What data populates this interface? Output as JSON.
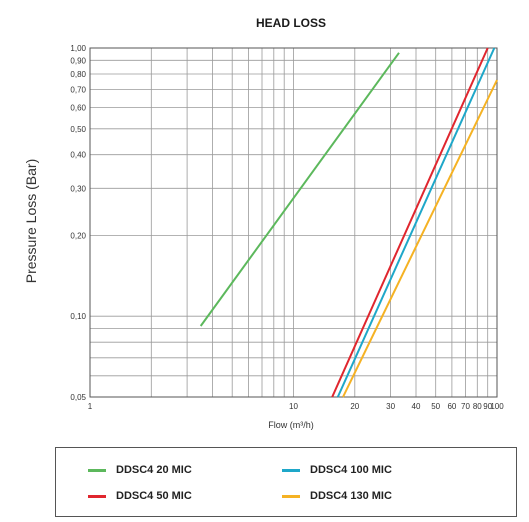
{
  "chart_data": {
    "type": "line",
    "title": "HEAD LOSS",
    "xlabel": "Flow (m³/h)",
    "ylabel": "Pressure Loss (Bar)",
    "x_scale": "log",
    "y_scale": "log",
    "xlim": [
      1,
      100
    ],
    "ylim": [
      0.05,
      1.0
    ],
    "grid": true,
    "legend_position": "bottom",
    "x_ticks": [
      {
        "value": 1,
        "label": "1"
      },
      {
        "value": 10,
        "label": "10"
      },
      {
        "value": 20,
        "label": "20"
      },
      {
        "value": 30,
        "label": "30"
      },
      {
        "value": 40,
        "label": "40"
      },
      {
        "value": 50,
        "label": "50"
      },
      {
        "value": 60,
        "label": "60"
      },
      {
        "value": 70,
        "label": "70"
      },
      {
        "value": 80,
        "label": "80"
      },
      {
        "value": 90,
        "label": "90"
      },
      {
        "value": 100,
        "label": "100"
      }
    ],
    "x_gridlines": [
      1,
      2,
      3,
      4,
      5,
      6,
      7,
      8,
      9,
      10,
      20,
      30,
      40,
      50,
      60,
      70,
      80,
      90,
      100
    ],
    "y_ticks": [
      {
        "value": 0.05,
        "label": "0,05"
      },
      {
        "value": 0.1,
        "label": "0,10"
      },
      {
        "value": 0.2,
        "label": "0,20"
      },
      {
        "value": 0.3,
        "label": "0,30"
      },
      {
        "value": 0.4,
        "label": "0,40"
      },
      {
        "value": 0.5,
        "label": "0,50"
      },
      {
        "value": 0.6,
        "label": "0,60"
      },
      {
        "value": 0.7,
        "label": "0,70"
      },
      {
        "value": 0.8,
        "label": "0,80"
      },
      {
        "value": 0.9,
        "label": "0,90"
      },
      {
        "value": 1.0,
        "label": "1,00"
      }
    ],
    "y_gridlines": [
      0.05,
      0.06,
      0.07,
      0.08,
      0.09,
      0.1,
      0.2,
      0.3,
      0.4,
      0.5,
      0.6,
      0.7,
      0.8,
      0.9,
      1.0
    ],
    "series": [
      {
        "name": "DDSC4 20 MIC",
        "color": "#5cb85c",
        "points": [
          [
            3.5,
            0.092
          ],
          [
            33,
            0.96
          ]
        ]
      },
      {
        "name": "DDSC4 50 MIC",
        "color": "#e0262e",
        "points": [
          [
            15.5,
            0.05
          ],
          [
            90,
            1.0
          ]
        ]
      },
      {
        "name": "DDSC4 100 MIC",
        "color": "#1ea7c9",
        "points": [
          [
            16.5,
            0.05
          ],
          [
            97,
            1.0
          ]
        ]
      },
      {
        "name": "DDSC4 130 MIC",
        "color": "#f5b223",
        "points": [
          [
            17.5,
            0.05
          ],
          [
            100,
            0.76
          ]
        ]
      }
    ]
  }
}
